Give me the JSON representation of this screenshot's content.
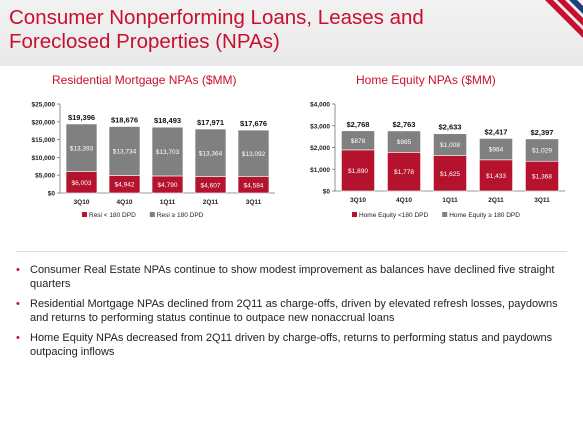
{
  "page": {
    "title": "Consumer Nonperforming Loans, Leases and Foreclosed Properties (NPAs)",
    "colors": {
      "accent": "#c8102e",
      "gray": "#7f7f7f"
    }
  },
  "chart_data": [
    {
      "type": "bar",
      "stacked": true,
      "title": "Residential Mortgage NPAs ($MM)",
      "categories": [
        "3Q10",
        "4Q10",
        "1Q11",
        "2Q11",
        "3Q11"
      ],
      "series": [
        {
          "name": "Resi < 180 DPD",
          "color": "#b5122e",
          "values": [
            6003,
            4942,
            4790,
            4607,
            4584
          ],
          "labels": [
            "$6,003",
            "$4,942",
            "$4,790",
            "$4,607",
            "$4,584"
          ]
        },
        {
          "name": "Resi ≥ 180 DPD",
          "color": "#808080",
          "values": [
            13393,
            13734,
            13703,
            13364,
            13092
          ],
          "labels": [
            "$13,393",
            "$13,734",
            "$13,703",
            "$13,364",
            "$13,092"
          ]
        }
      ],
      "totals": [
        "$19,396",
        "$18,676",
        "$18,493",
        "$17,971",
        "$17,676"
      ],
      "total_values": [
        19396,
        18676,
        18493,
        17971,
        17676
      ],
      "ylim": [
        0,
        25000
      ],
      "yticks": [
        0,
        5000,
        10000,
        15000,
        20000,
        25000
      ],
      "ytick_labels": [
        "$0",
        "$5,000",
        "$10,000",
        "$15,000",
        "$20,000",
        "$25,000"
      ],
      "legend_position": "bottom",
      "grid": false
    },
    {
      "type": "bar",
      "stacked": true,
      "title": "Home Equity NPAs ($MM)",
      "categories": [
        "3Q10",
        "4Q10",
        "1Q11",
        "2Q11",
        "3Q11"
      ],
      "series": [
        {
          "name": "Home Equity <180 DPD",
          "color": "#b5122e",
          "values": [
            1890,
            1778,
            1625,
            1433,
            1368
          ],
          "labels": [
            "$1,890",
            "$1,778",
            "$1,625",
            "$1,433",
            "$1,368"
          ]
        },
        {
          "name": "Home Equity ≥ 180 DPD",
          "color": "#808080",
          "values": [
            878,
            985,
            1008,
            984,
            1029
          ],
          "labels": [
            "$878",
            "$985",
            "$1,008",
            "$984",
            "$1,029"
          ]
        }
      ],
      "totals": [
        "$2,768",
        "$2,763",
        "$2,633",
        "$2,417",
        "$2,397"
      ],
      "total_values": [
        2768,
        2763,
        2633,
        2417,
        2397
      ],
      "ylim": [
        0,
        4000
      ],
      "yticks": [
        0,
        1000,
        2000,
        3000,
        4000
      ],
      "ytick_labels": [
        "$0",
        "$1,000",
        "$2,000",
        "$3,000",
        "$4,000"
      ],
      "legend_position": "bottom",
      "grid": false
    }
  ],
  "bullets": [
    "Consumer Real Estate NPAs continue to show modest improvement as balances have declined five straight quarters",
    "Residential Mortgage NPAs declined from 2Q11 as charge-offs, driven by elevated refresh losses, paydowns and returns to performing status continue to outpace new nonaccrual loans",
    "Home Equity NPAs decreased from 2Q11 driven by charge-offs, returns to performing status and paydowns outpacing inflows"
  ],
  "bullet_glyph": "•"
}
